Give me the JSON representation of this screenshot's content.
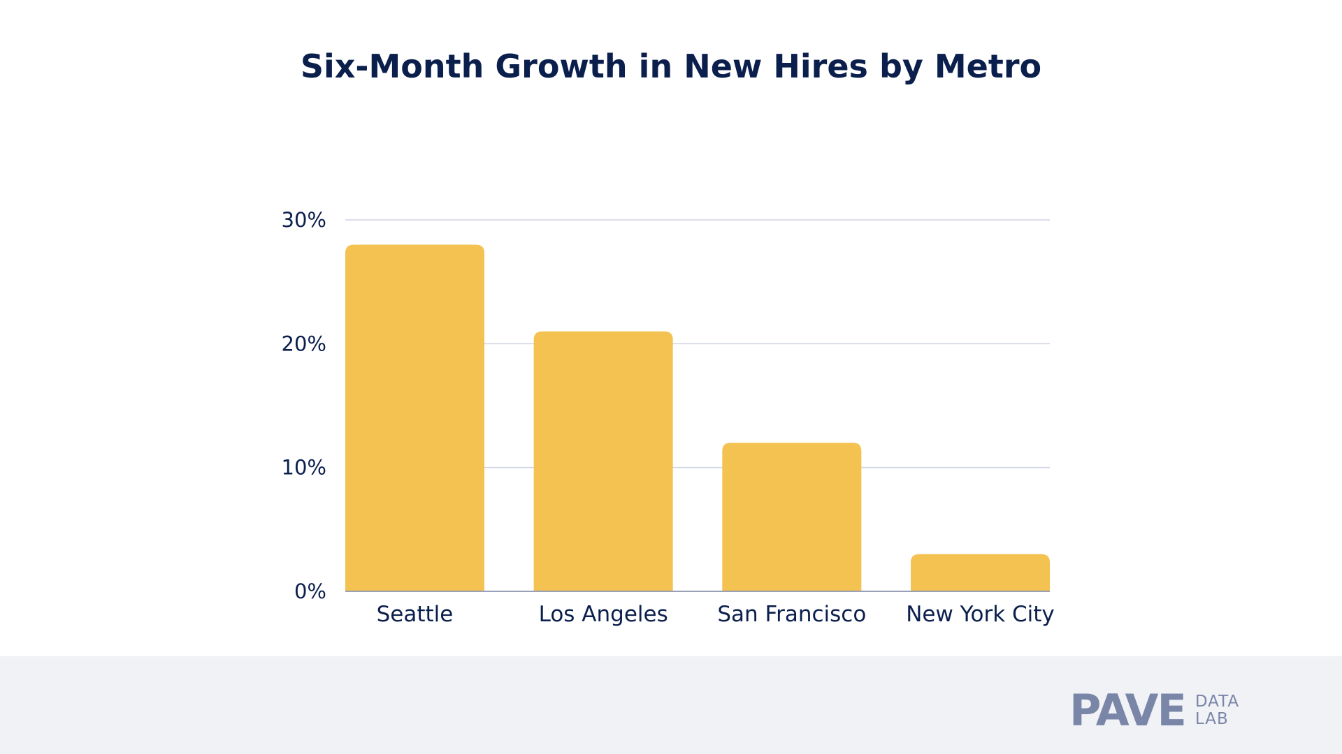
{
  "chart_data": {
    "type": "bar",
    "title": "Six-Month Growth in New Hires by Metro",
    "categories": [
      "Seattle",
      "Los Angeles",
      "San Francisco",
      "New York City"
    ],
    "values": [
      28,
      21,
      12,
      3
    ],
    "value_unit": "%",
    "ylim": [
      0,
      30
    ],
    "yticks": [
      0,
      10,
      20,
      30
    ],
    "ytick_labels": [
      "0%",
      "10%",
      "20%",
      "30%"
    ],
    "xlabel": "",
    "ylabel": "",
    "grid": true,
    "legend": "none",
    "colors": {
      "bar": "#f3c250",
      "grid": "#cfd2e3",
      "axis": "#9aa0b8",
      "text": "#0b1f4d"
    }
  },
  "footer": {
    "logo_main": "PAVE",
    "logo_sub_top": "DATA",
    "logo_sub_bottom": "LAB",
    "background": "#f1f2f6"
  }
}
